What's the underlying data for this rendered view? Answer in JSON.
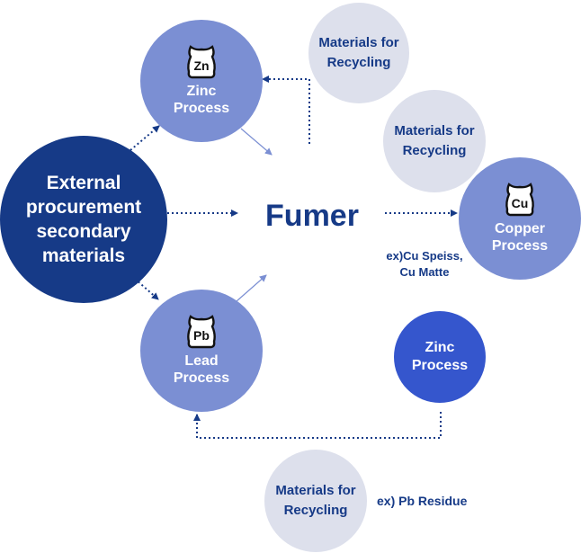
{
  "nodes": {
    "zinc_top": {
      "icon_text": "Zn",
      "label1": "Zinc",
      "label2": "Process"
    },
    "lead": {
      "icon_text": "Pb",
      "label1": "Lead",
      "label2": "Process"
    },
    "copper": {
      "icon_text": "Cu",
      "label1": "Copper",
      "label2": "Process"
    },
    "external": {
      "line1": "External",
      "line2": "procurement",
      "line3": "secondary",
      "line4": "materials"
    },
    "fumer": {
      "label": "Fumer"
    },
    "zinc_bottom": {
      "label1": "Zinc",
      "label2": "Process"
    },
    "recycling_1": {
      "line1": "Materials for",
      "line2": "Recycling"
    },
    "recycling_2": {
      "line1": "Materials for",
      "line2": "Recycling"
    },
    "recycling_3": {
      "line1": "Materials for",
      "line2": "Recycling"
    }
  },
  "notes": {
    "cu_line1": "ex)Cu Speiss,",
    "cu_line2": "Cu Matte",
    "pb_residue": "ex) Pb Residue"
  },
  "colors": {
    "dark_blue": "#163a87",
    "mid_blue": "#7b8fd3",
    "bright_blue": "#3556cd",
    "light_gray": "#dde0ec"
  }
}
